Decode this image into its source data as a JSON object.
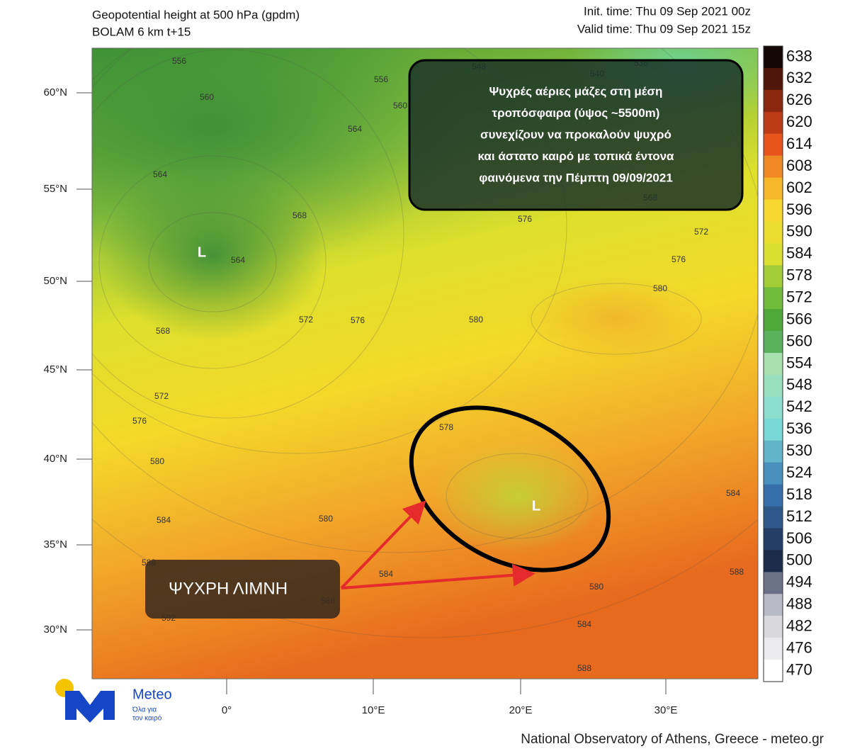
{
  "header": {
    "title": "Geopotential height at 500 hPa (gpdm)",
    "model": "BOLAM 6 km t+15",
    "init_time": "Init. time: Thu 09 Sep 2021 00z",
    "valid_time": "Valid time: Thu 09 Sep 2021 15z"
  },
  "map": {
    "latitudes": [
      "60°N",
      "55°N",
      "50°N",
      "45°N",
      "40°N",
      "35°N",
      "30°N"
    ],
    "longitudes": [
      "0°",
      "10°E",
      "20°E",
      "30°E"
    ],
    "low_markers": [
      "L",
      "L"
    ],
    "contour_labels": [
      556,
      556,
      548,
      540,
      536,
      560,
      560,
      564,
      564,
      568,
      564,
      568,
      572,
      576,
      576,
      572,
      576,
      580,
      580,
      572,
      576,
      580,
      584,
      580,
      578,
      588,
      588,
      584,
      592,
      580,
      584,
      588,
      584,
      588,
      568
    ]
  },
  "colorbar": {
    "levels": [
      638,
      632,
      626,
      620,
      614,
      608,
      602,
      596,
      590,
      584,
      578,
      572,
      566,
      560,
      554,
      548,
      542,
      536,
      530,
      524,
      518,
      512,
      506,
      500,
      494,
      488,
      482,
      476,
      470
    ]
  },
  "annotations": {
    "info_box": [
      "Ψυχρές αέριες μάζες στη μέση",
      "τροπόσφαιρα  (ύψος ~5500m)",
      "συνεχίζουν να προκαλούν ψυχρό",
      "και άστατο καιρό με τοπικά έντονα",
      "φαινόμενα την Πέμπτη 09/09/2021"
    ],
    "cold_pool": "ΨΥΧΡΗ ΛΙΜΝΗ"
  },
  "logo": {
    "name": "Meteo",
    "tagline": [
      "Όλα για",
      "τον καιρό"
    ]
  },
  "footer": "National Observatory of Athens, Greece - meteo.gr"
}
